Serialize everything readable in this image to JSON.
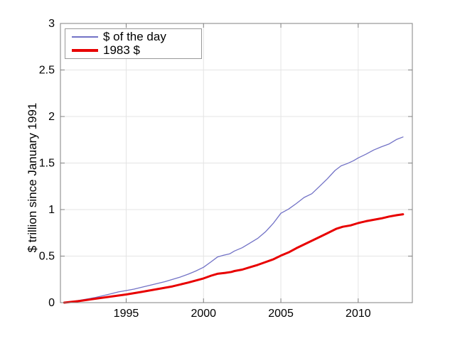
{
  "colors": {
    "background": "#ffffff",
    "grid": "#e4e4e4",
    "axis": "#808080",
    "text": "#000000",
    "legend_border": "#999999"
  },
  "chart_data": {
    "type": "line",
    "title": "",
    "xlabel": "",
    "ylabel": "$ trillion since January 1991",
    "xlim": [
      1990.75,
      2013.5
    ],
    "ylim": [
      0,
      3
    ],
    "xticks": [
      1995,
      2000,
      2005,
      2010
    ],
    "yticks": [
      0,
      0.5,
      1,
      1.5,
      2,
      2.5,
      3
    ],
    "grid": true,
    "legend_position": "top-left",
    "series": [
      {
        "name": "$ of the day",
        "color": "#7272c6",
        "width": 1.3,
        "x": [
          1991,
          1991.5,
          1992,
          1992.5,
          1993,
          1993.5,
          1994,
          1994.5,
          1995,
          1995.5,
          1996,
          1996.5,
          1997,
          1997.5,
          1998,
          1998.5,
          1999,
          1999.5,
          2000,
          2000.5,
          2000.9,
          2001.3,
          2001.7,
          2002,
          2002.5,
          2003,
          2003.5,
          2004,
          2004.5,
          2005,
          2005.5,
          2006,
          2006.5,
          2007,
          2007.5,
          2008,
          2008.5,
          2008.9,
          2009.3,
          2009.7,
          2010,
          2010.5,
          2011,
          2011.5,
          2012,
          2012.5,
          2012.9
        ],
        "y": [
          0,
          0.01,
          0.025,
          0.04,
          0.055,
          0.075,
          0.095,
          0.115,
          0.13,
          0.145,
          0.165,
          0.185,
          0.205,
          0.225,
          0.25,
          0.275,
          0.305,
          0.34,
          0.38,
          0.44,
          0.49,
          0.51,
          0.525,
          0.555,
          0.59,
          0.64,
          0.69,
          0.76,
          0.85,
          0.96,
          1.005,
          1.065,
          1.13,
          1.17,
          1.25,
          1.33,
          1.42,
          1.47,
          1.495,
          1.525,
          1.555,
          1.595,
          1.64,
          1.675,
          1.705,
          1.755,
          1.78
        ]
      },
      {
        "name": "1983 $",
        "color": "#e80000",
        "width": 3,
        "x": [
          1991,
          1992,
          1993,
          1994,
          1995,
          1996,
          1997,
          1998,
          1999,
          2000,
          2000.5,
          2000.9,
          2001.4,
          2001.8,
          2002,
          2002.5,
          2003,
          2003.5,
          2004,
          2004.5,
          2005,
          2005.5,
          2006,
          2006.5,
          2007,
          2007.5,
          2008,
          2008.6,
          2009,
          2009.5,
          2010,
          2010.5,
          2011,
          2011.5,
          2012,
          2012.5,
          2012.9
        ],
        "y": [
          0,
          0.018,
          0.042,
          0.065,
          0.088,
          0.115,
          0.145,
          0.175,
          0.215,
          0.26,
          0.29,
          0.31,
          0.32,
          0.33,
          0.34,
          0.355,
          0.38,
          0.405,
          0.435,
          0.465,
          0.505,
          0.54,
          0.585,
          0.625,
          0.665,
          0.705,
          0.745,
          0.795,
          0.815,
          0.83,
          0.855,
          0.875,
          0.89,
          0.905,
          0.925,
          0.94,
          0.95
        ]
      }
    ]
  }
}
